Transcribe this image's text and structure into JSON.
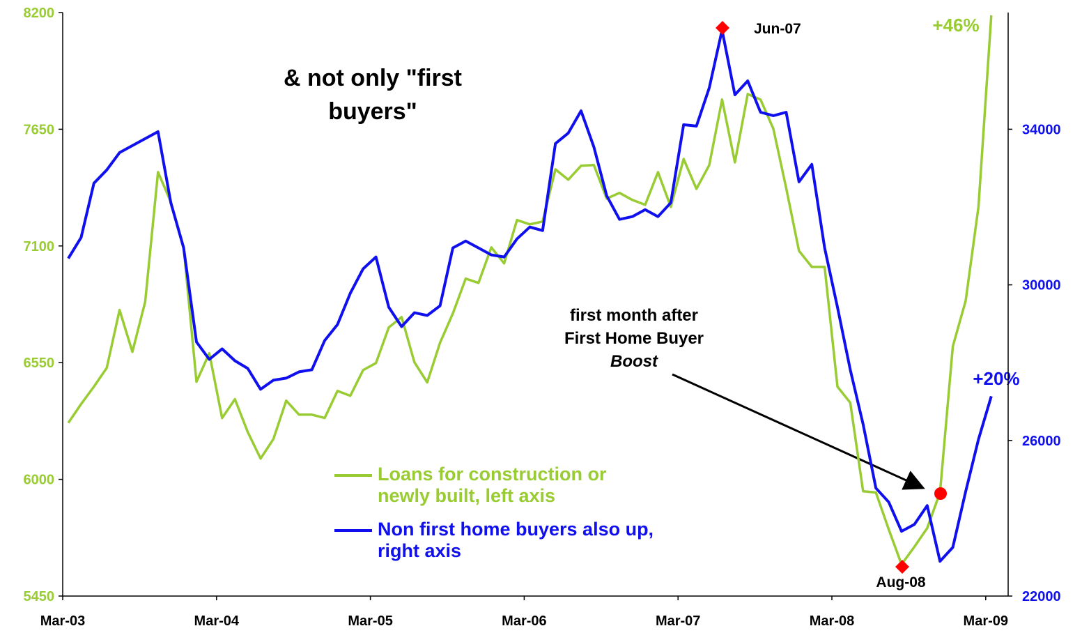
{
  "chart_data": {
    "type": "line",
    "title": "& not only \"first buyers\"",
    "categories": [
      "Mar-03",
      null,
      null,
      null,
      null,
      null,
      null,
      null,
      null,
      null,
      null,
      null,
      "Mar-04",
      null,
      null,
      null,
      null,
      null,
      null,
      null,
      null,
      null,
      null,
      null,
      "Mar-05",
      null,
      null,
      null,
      null,
      null,
      null,
      null,
      null,
      null,
      null,
      null,
      "Mar-06",
      null,
      null,
      null,
      null,
      null,
      null,
      null,
      null,
      null,
      null,
      null,
      "Mar-07",
      null,
      null,
      null,
      null,
      null,
      null,
      null,
      null,
      null,
      null,
      null,
      "Mar-08",
      null,
      null,
      null,
      null,
      null,
      null,
      null,
      null,
      null,
      null,
      null,
      "Mar-09"
    ],
    "series": [
      {
        "name": "Loans for construction or newly built, left axis",
        "color": "#99cc33",
        "values": [
          6266,
          6355,
          6437,
          6525,
          6798,
          6601,
          6837,
          7448,
          7307,
          7093,
          6460,
          6594,
          6289,
          6378,
          6223,
          6098,
          6190,
          6371,
          6305,
          6305,
          6289,
          6417,
          6394,
          6515,
          6548,
          6716,
          6765,
          6552,
          6457,
          6644,
          6782,
          6946,
          6926,
          7093,
          7018,
          7222,
          7202,
          7215,
          7461,
          7412,
          7478,
          7481,
          7323,
          7350,
          7317,
          7294,
          7448,
          7284,
          7510,
          7369,
          7481,
          7790,
          7494,
          7816,
          7790,
          7652,
          7373,
          7077,
          7001,
          7001,
          6437,
          6361,
          5944,
          5938,
          5764,
          5599,
          5682,
          5770,
          5938,
          6627,
          6841,
          7284,
          8187
        ]
      },
      {
        "name": "Non first home buyers also up, right axis",
        "color": "#1010ee",
        "axis": "y2",
        "values": [
          30680,
          31217,
          32613,
          32953,
          33400,
          33579,
          33758,
          33937,
          32112,
          30949,
          28532,
          28085,
          28354,
          28049,
          27852,
          27316,
          27548,
          27602,
          27763,
          27817,
          28568,
          28980,
          29785,
          30412,
          30716,
          29427,
          28926,
          29284,
          29213,
          29463,
          30949,
          31128,
          30949,
          30770,
          30716,
          31181,
          31486,
          31396,
          33633,
          33902,
          34474,
          33543,
          32291,
          31682,
          31754,
          31933,
          31754,
          32112,
          34116,
          34080,
          35065,
          36550,
          34886,
          35244,
          34438,
          34349,
          34438,
          32649,
          33096,
          30949,
          29427,
          27817,
          26420,
          24774,
          24416,
          23664,
          23843,
          24327,
          22895,
          23253,
          24685,
          26027,
          27136
        ]
      }
    ],
    "ylim": [
      5450,
      8200
    ],
    "yticks": [
      5450,
      6000,
      6550,
      7100,
      7650,
      8200
    ],
    "y2lim": [
      22000,
      37000
    ],
    "y2ticks": [
      22000,
      26000,
      30000,
      34000
    ],
    "annotations": [
      "Jun-07",
      "Aug-08",
      "first month after",
      "First Home Buyer",
      "Boost",
      "+46%",
      "+20%"
    ]
  }
}
